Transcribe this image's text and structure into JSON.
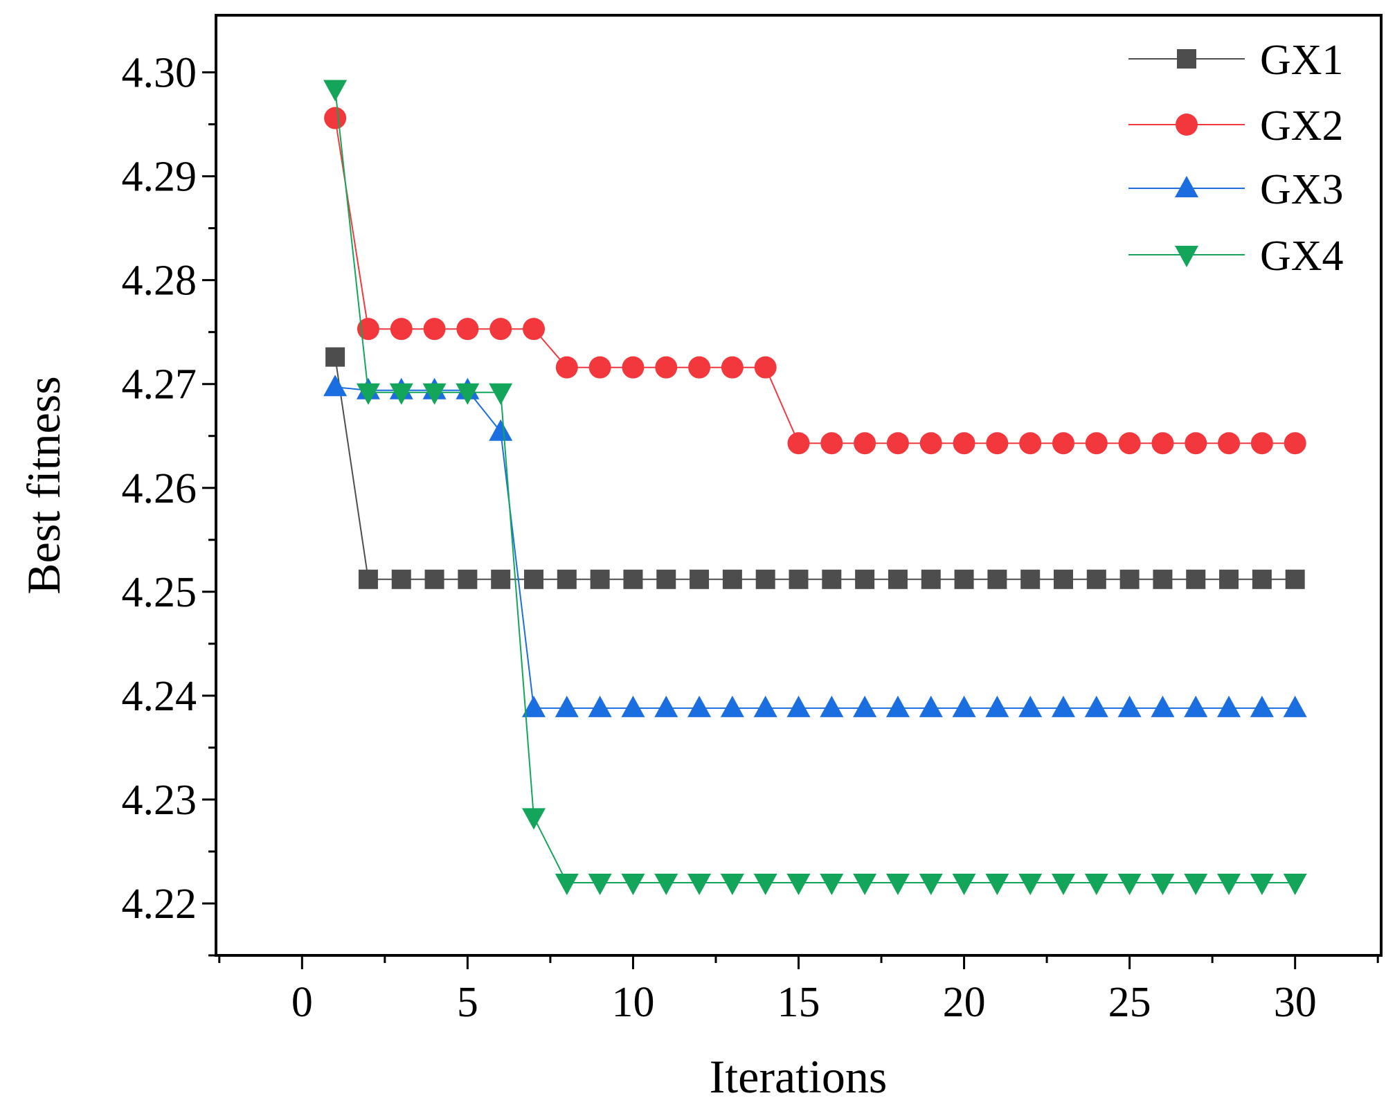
{
  "chart_data": {
    "type": "line",
    "title": "",
    "xlabel": "Iterations",
    "ylabel": "Best fitness",
    "xlim": [
      -2.6,
      32.6
    ],
    "ylim": [
      4.215,
      4.3055
    ],
    "xticks": [
      0,
      5,
      10,
      15,
      20,
      25,
      30
    ],
    "xtick_labels": [
      "0",
      "5",
      "10",
      "15",
      "20",
      "25",
      "30"
    ],
    "yticks": [
      4.22,
      4.23,
      4.24,
      4.25,
      4.26,
      4.27,
      4.28,
      4.29,
      4.3
    ],
    "ytick_labels": [
      "4.22",
      "4.23",
      "4.24",
      "4.25",
      "4.26",
      "4.27",
      "4.28",
      "4.29",
      "4.30"
    ],
    "grid": false,
    "legend_position": "top-right",
    "x": [
      1,
      2,
      3,
      4,
      5,
      6,
      7,
      8,
      9,
      10,
      11,
      12,
      13,
      14,
      15,
      16,
      17,
      18,
      19,
      20,
      21,
      22,
      23,
      24,
      25,
      26,
      27,
      28,
      29,
      30
    ],
    "series": [
      {
        "name": "GX1",
        "color": "#4d4d4d",
        "marker": "square",
        "values": [
          4.2726,
          4.2512,
          4.2512,
          4.2512,
          4.2512,
          4.2512,
          4.2512,
          4.2512,
          4.2512,
          4.2512,
          4.2512,
          4.2512,
          4.2512,
          4.2512,
          4.2512,
          4.2512,
          4.2512,
          4.2512,
          4.2512,
          4.2512,
          4.2512,
          4.2512,
          4.2512,
          4.2512,
          4.2512,
          4.2512,
          4.2512,
          4.2512,
          4.2512,
          4.2512
        ]
      },
      {
        "name": "GX2",
        "color": "#f2383d",
        "marker": "circle",
        "values": [
          4.2956,
          4.2753,
          4.2753,
          4.2753,
          4.2753,
          4.2753,
          4.2753,
          4.2716,
          4.2716,
          4.2716,
          4.2716,
          4.2716,
          4.2716,
          4.2716,
          4.2643,
          4.2643,
          4.2643,
          4.2643,
          4.2643,
          4.2643,
          4.2643,
          4.2643,
          4.2643,
          4.2643,
          4.2643,
          4.2643,
          4.2643,
          4.2643,
          4.2643,
          4.2643
        ]
      },
      {
        "name": "GX3",
        "color": "#1a6ee0",
        "marker": "triangle-up",
        "values": [
          4.2697,
          4.2694,
          4.2694,
          4.2694,
          4.2694,
          4.2654,
          4.2388,
          4.2388,
          4.2388,
          4.2388,
          4.2388,
          4.2388,
          4.2388,
          4.2388,
          4.2388,
          4.2388,
          4.2388,
          4.2388,
          4.2388,
          4.2388,
          4.2388,
          4.2388,
          4.2388,
          4.2388,
          4.2388,
          4.2388,
          4.2388,
          4.2388,
          4.2388,
          4.2388
        ]
      },
      {
        "name": "GX4",
        "color": "#13a65a",
        "marker": "triangle-down",
        "values": [
          4.2984,
          4.2692,
          4.2692,
          4.2692,
          4.2692,
          4.2692,
          4.2283,
          4.222,
          4.222,
          4.222,
          4.222,
          4.222,
          4.222,
          4.222,
          4.222,
          4.222,
          4.222,
          4.222,
          4.222,
          4.222,
          4.222,
          4.222,
          4.222,
          4.222,
          4.222,
          4.222,
          4.222,
          4.222,
          4.222,
          4.222
        ]
      }
    ]
  }
}
